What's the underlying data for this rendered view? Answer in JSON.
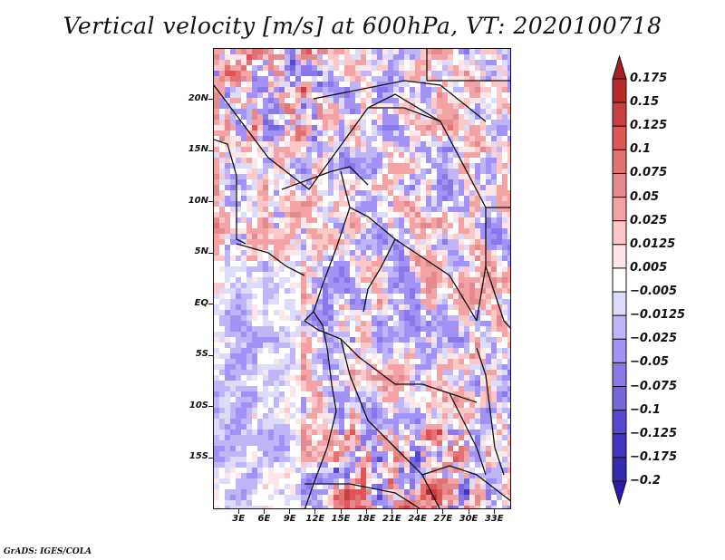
{
  "title": "Vertical velocity [m/s] at 600hPa, VT: 2020100718",
  "footer": "GrADS: IGES/COLA",
  "map": {
    "variable": "Vertical velocity",
    "units": "m/s",
    "level": "600hPa",
    "valid_time": "2020100718",
    "lon_range": [
      0,
      35
    ],
    "lat_range": [
      -20,
      25
    ],
    "lat_ticks": [
      {
        "label": "20N",
        "lat": 20
      },
      {
        "label": "15N",
        "lat": 15
      },
      {
        "label": "10N",
        "lat": 10
      },
      {
        "label": "5N",
        "lat": 5
      },
      {
        "label": "EQ",
        "lat": 0
      },
      {
        "label": "5S",
        "lat": -5
      },
      {
        "label": "10S",
        "lat": -10
      },
      {
        "label": "15S",
        "lat": -15
      }
    ],
    "lon_ticks": [
      {
        "label": "3E",
        "lon": 3
      },
      {
        "label": "6E",
        "lon": 6
      },
      {
        "label": "9E",
        "lon": 9
      },
      {
        "label": "12E",
        "lon": 12
      },
      {
        "label": "15E",
        "lon": 15
      },
      {
        "label": "18E",
        "lon": 18
      },
      {
        "label": "21E",
        "lon": 21
      },
      {
        "label": "24E",
        "lon": 24
      },
      {
        "label": "27E",
        "lon": 27
      },
      {
        "label": "30E",
        "lon": 30
      },
      {
        "label": "33E",
        "lon": 33
      }
    ]
  },
  "colorbar": {
    "labels": [
      "0.175",
      "0.15",
      "0.125",
      "0.1",
      "0.075",
      "0.05",
      "0.025",
      "0.0125",
      "0.005",
      "−0.005",
      "−0.0125",
      "−0.025",
      "−0.05",
      "−0.075",
      "−0.1",
      "−0.125",
      "−0.175",
      "−0.2"
    ],
    "levels": [
      0.175,
      0.15,
      0.125,
      0.1,
      0.075,
      0.05,
      0.025,
      0.0125,
      0.005,
      -0.005,
      -0.0125,
      -0.025,
      -0.05,
      -0.075,
      -0.1,
      -0.125,
      -0.175,
      -0.2
    ],
    "colors": [
      "#a51e22",
      "#b82a2c",
      "#cb3e3f",
      "#e05555",
      "#e57272",
      "#e28a8d",
      "#f4a3a5",
      "#fbc8c9",
      "#fde6e7",
      "#ffffff",
      "#dcdcfa",
      "#c0b5f7",
      "#a292f6",
      "#8a78ea",
      "#7566dc",
      "#5748d2",
      "#4333c2",
      "#352bb0",
      "#2d1aa6"
    ]
  }
}
